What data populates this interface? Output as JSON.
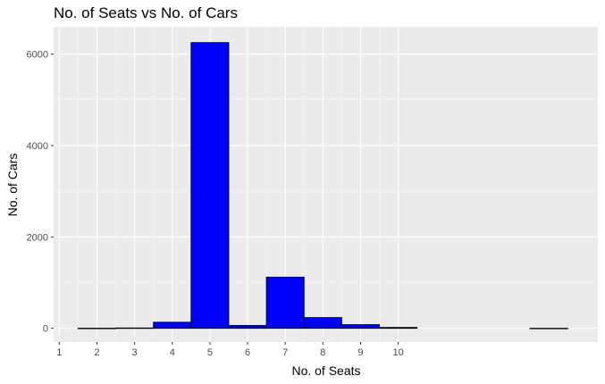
{
  "chart_data": {
    "type": "bar",
    "title": "No. of Seats vs No. of Cars",
    "xlabel": "No. of Seats",
    "ylabel": "No. of Cars",
    "categories": [
      "2",
      "3",
      "4",
      "5",
      "6",
      "7",
      "8",
      "9",
      "10",
      "14"
    ],
    "values": [
      2,
      8,
      133,
      6254,
      62,
      1120,
      235,
      80,
      19,
      1
    ],
    "xlim": [
      0.85,
      15.3
    ],
    "ylim": [
      -300,
      6600
    ],
    "x_ticks": [
      "1",
      "2",
      "3",
      "4",
      "5",
      "6",
      "7",
      "8",
      "9",
      "10"
    ],
    "y_ticks": [
      "0",
      "2000",
      "4000",
      "6000"
    ],
    "bar_color": "#0000ff",
    "bar_outline": "#000000",
    "panel_background": "#ebebeb",
    "grid": true,
    "legend": "none"
  }
}
